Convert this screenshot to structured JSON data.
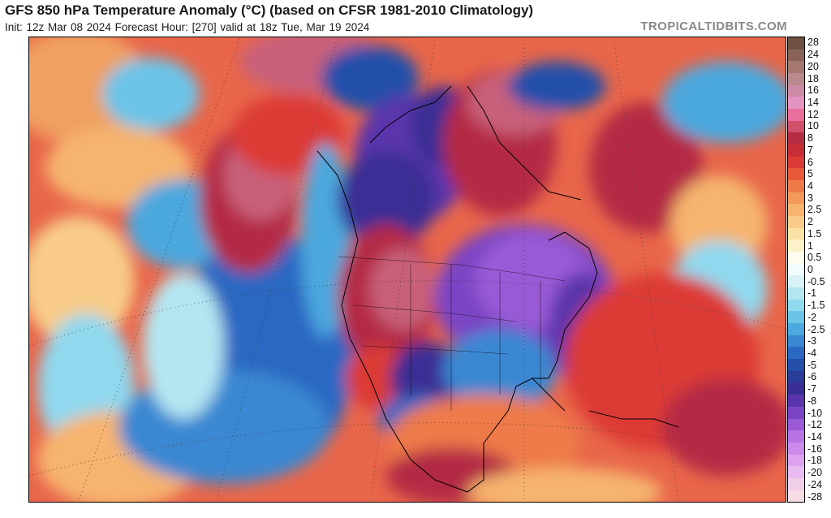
{
  "header": {
    "title": "GFS 850 hPa Temperature Anomaly (°C) (based on CFSR 1981-2010 Climatology)",
    "subtitle": "Init: 12z Mar 08 2024   Forecast Hour: [270]   valid at 18z Tue, Mar 19 2024",
    "site": "TROPICALTIDBITS.COM"
  },
  "colorbar": {
    "labels": [
      "28",
      "24",
      "20",
      "18",
      "16",
      "14",
      "12",
      "10",
      "8",
      "7",
      "6",
      "5",
      "4",
      "3",
      "2.5",
      "2",
      "1.5",
      "1",
      "0.5",
      "0",
      "-0.5",
      "-1",
      "-1.5",
      "-2",
      "-2.5",
      "-3",
      "-4",
      "-5",
      "-6",
      "-7",
      "-8",
      "-10",
      "-12",
      "-14",
      "-16",
      "-18",
      "-20",
      "-24",
      "-28"
    ],
    "colors": [
      "#6e5044",
      "#8a6258",
      "#a47870",
      "#b88a8c",
      "#cc8aa6",
      "#e494c0",
      "#ea6e9c",
      "#d0506c",
      "#b42c44",
      "#c82c34",
      "#dc3a34",
      "#e85a3a",
      "#ee7a48",
      "#f29a5a",
      "#f6b46e",
      "#f8cc88",
      "#fae2a4",
      "#fcf2c8",
      "#fefcec",
      "#f2fbfd",
      "#d8f2f8",
      "#b4e6f2",
      "#90d8ee",
      "#6cc4e8",
      "#4ca8de",
      "#3a88d2",
      "#2a68c2",
      "#2450aa",
      "#283c98",
      "#3a2e94",
      "#5a34ac",
      "#7a44c4",
      "#9a5ad6",
      "#b874e2",
      "#cc8aea",
      "#dca2ee",
      "#e8baf0",
      "#f0cee8",
      "#f6dce4"
    ]
  },
  "map": {
    "label": "North America 850 hPa temperature anomaly field"
  }
}
